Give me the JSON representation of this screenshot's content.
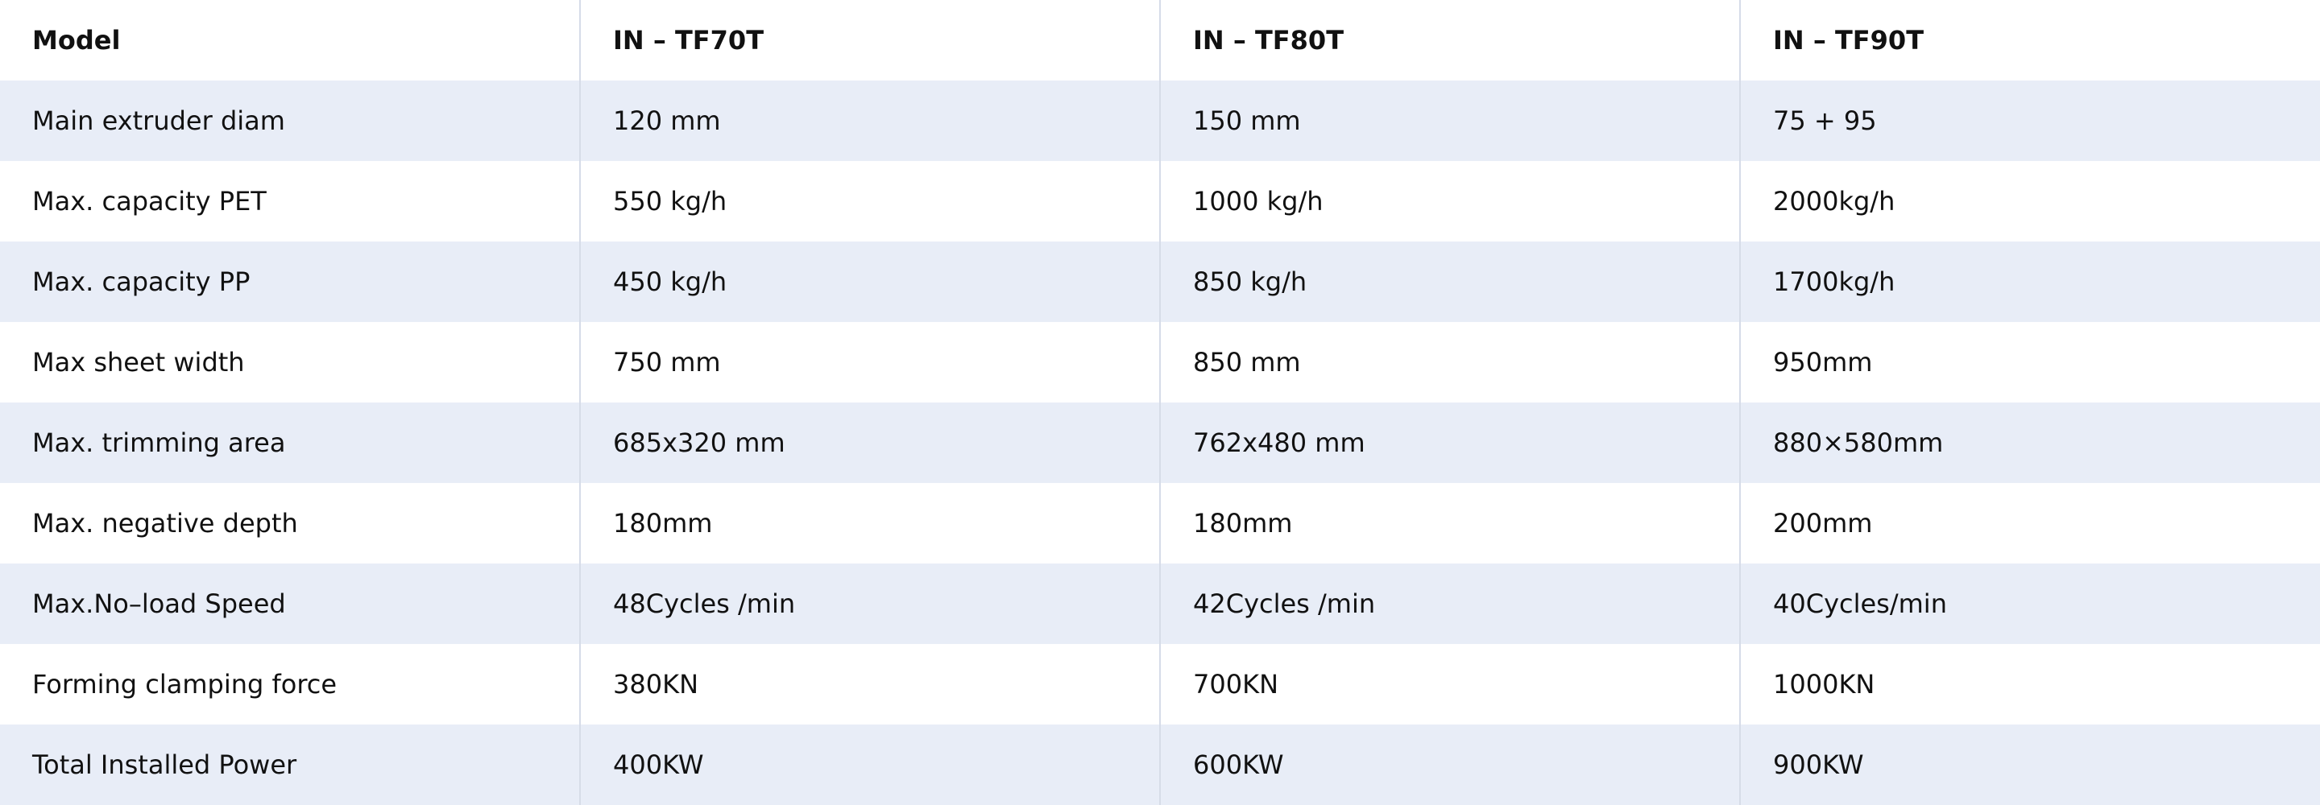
{
  "table": {
    "header": [
      "Model",
      "IN – TF70T",
      "IN – TF80T",
      "IN – TF90T"
    ],
    "rows": [
      [
        "Main extruder diam",
        "120 mm",
        "150 mm",
        "75 + 95"
      ],
      [
        "Max. capacity PET",
        "550 kg/h",
        "1000 kg/h",
        "2000kg/h"
      ],
      [
        "Max. capacity PP",
        "450 kg/h",
        "850 kg/h",
        "1700kg/h"
      ],
      [
        "Max sheet width",
        "750 mm",
        "850 mm",
        "950mm"
      ],
      [
        "Max. trimming area",
        "685x320 mm",
        "762x480 mm",
        "880×580mm"
      ],
      [
        "Max. negative depth",
        "180mm",
        "180mm",
        "200mm"
      ],
      [
        "Max.No–load Speed",
        "48Cycles /min",
        "42Cycles /min",
        "40Cycles/min"
      ],
      [
        "Forming clamping force",
        "380KN",
        "700KN",
        "1000KN"
      ],
      [
        "Total Installed Power",
        "400KW",
        "600KW",
        "900KW"
      ]
    ]
  }
}
